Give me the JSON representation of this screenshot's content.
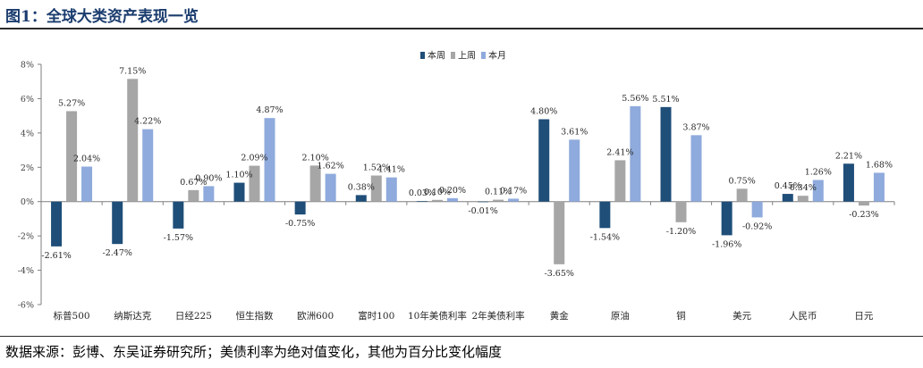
{
  "figure": {
    "title": "图1：全球大类资产表现一览",
    "source": "数据来源：彭博、东吴证券研究所；美债利率为绝对值变化，其他为百分比变化幅度"
  },
  "chart_data": {
    "type": "bar",
    "title": "",
    "xlabel": "",
    "ylabel": "",
    "ylim": [
      -6,
      8
    ],
    "yticks": [
      -6,
      -4,
      -2,
      0,
      2,
      4,
      6,
      8
    ],
    "ytick_labels": [
      "-6%",
      "-4%",
      "-2%",
      "0%",
      "2%",
      "4%",
      "6%",
      "8%"
    ],
    "grid": false,
    "legend_position": "top-center",
    "categories": [
      "标普500",
      "纳斯达克",
      "日经225",
      "恒生指数",
      "欧洲600",
      "富时100",
      "10年美债利率",
      "2年美债利率",
      "黄金",
      "原油",
      "铜",
      "美元",
      "人民币",
      "日元"
    ],
    "series": [
      {
        "name": "本周",
        "color": "#1f4e79",
        "values": [
          -2.61,
          -2.47,
          -1.57,
          1.1,
          -0.75,
          0.38,
          0.03,
          -0.01,
          4.8,
          -1.54,
          5.51,
          -1.96,
          0.45,
          2.21
        ],
        "labels": [
          "-2.61%",
          "-2.47%",
          "-1.57%",
          "1.10%",
          "-0.75%",
          "0.38%",
          "0.03%",
          "-0.01%",
          "4.80%",
          "-1.54%",
          "5.51%",
          "-1.96%",
          "0.45%",
          "2.21%"
        ]
      },
      {
        "name": "上周",
        "color": "#a6a6a6",
        "values": [
          5.27,
          7.15,
          0.67,
          2.09,
          2.1,
          1.52,
          0.1,
          0.11,
          -3.65,
          2.41,
          -1.2,
          0.75,
          0.34,
          -0.23
        ],
        "labels": [
          "5.27%",
          "7.15%",
          "0.67%",
          "2.09%",
          "2.10%",
          "1.52%",
          "0.10%",
          "0.11%",
          "-3.65%",
          "2.41%",
          "-1.20%",
          "0.75%",
          "0.34%",
          "-0.23%"
        ]
      },
      {
        "name": "本月",
        "color": "#8faadc",
        "values": [
          2.04,
          4.22,
          0.9,
          4.87,
          1.62,
          1.41,
          0.2,
          0.17,
          3.61,
          5.56,
          3.87,
          -0.92,
          1.26,
          1.68
        ],
        "labels": [
          "2.04%",
          "4.22%",
          "0.90%",
          "4.87%",
          "1.62%",
          "1.41%",
          "0.20%",
          "0.17%",
          "3.61%",
          "5.56%",
          "3.87%",
          "-0.92%",
          "1.26%",
          "1.68%"
        ]
      }
    ]
  }
}
